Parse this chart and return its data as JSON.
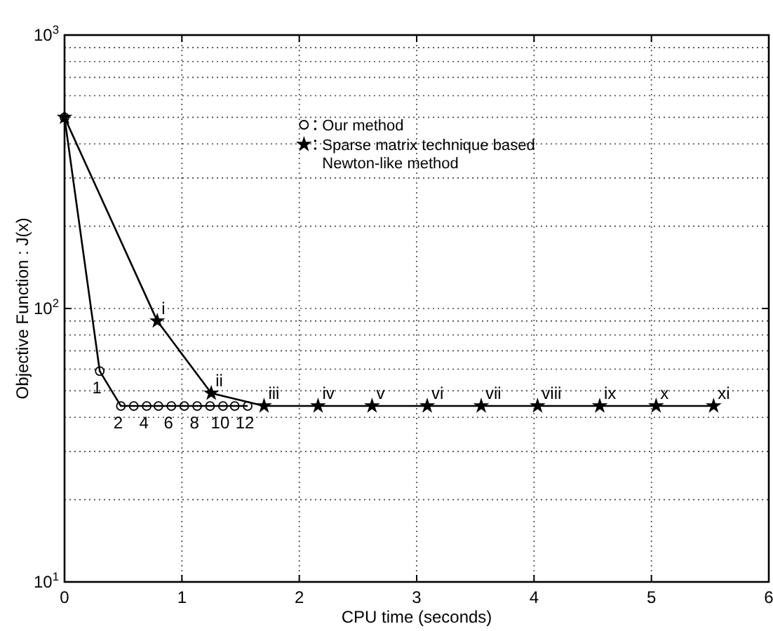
{
  "chart_data": {
    "type": "line",
    "xlabel": "CPU time (seconds)",
    "ylabel": "Objective Function : J(x)",
    "log": "y",
    "xlim": [
      0,
      6
    ],
    "xticks": [
      0,
      1,
      2,
      3,
      4,
      5,
      6
    ],
    "ylim": [
      10,
      1000
    ],
    "yticks": [
      {
        "value": 10,
        "label": "10$^{1}$"
      },
      {
        "value": 100,
        "label": "10$^{2}$"
      },
      {
        "value": 1000,
        "label": "10$^{3}$"
      }
    ],
    "grid": true,
    "legend": "top right",
    "line_style": "solid",
    "series": [
      {
        "name": "Our method",
        "color": "#000000",
        "marker": "circle",
        "x": [
          0,
          0.3,
          0.48,
          0.59,
          0.7,
          0.8,
          0.91,
          1.02,
          1.13,
          1.24,
          1.35,
          1.45,
          1.56
        ],
        "values": [
          500,
          59,
          44,
          44,
          44,
          44,
          44,
          44,
          44,
          44,
          44,
          44,
          44
        ]
      },
      {
        "name": "Sparse matrix technique based Newton-like method",
        "color": "#000000",
        "marker": "star",
        "x": [
          0,
          0.79,
          1.25,
          1.7,
          2.16,
          2.62,
          3.09,
          3.55,
          4.03,
          4.56,
          5.04,
          5.53
        ],
        "values": [
          500,
          90,
          49,
          44,
          44,
          44,
          44,
          44,
          44,
          44,
          44,
          44
        ]
      }
    ],
    "annotations": [
      {
        "text": "1",
        "x": 0.3,
        "y": 59
      },
      {
        "text": "2",
        "x": 0.48,
        "y": 44
      },
      {
        "text": "4",
        "x": 0.7,
        "y": 44
      },
      {
        "text": "6",
        "x": 0.91,
        "y": 44
      },
      {
        "text": "8",
        "x": 1.13,
        "y": 44
      },
      {
        "text": "10",
        "x": 1.35,
        "y": 44
      },
      {
        "text": "12",
        "x": 1.56,
        "y": 44
      },
      {
        "text": "i",
        "x": 0.79,
        "y": 90
      },
      {
        "text": "ii",
        "x": 1.25,
        "y": 49
      },
      {
        "text": "iii",
        "x": 1.7,
        "y": 44
      },
      {
        "text": "iv",
        "x": 2.16,
        "y": 44
      },
      {
        "text": "v",
        "x": 2.62,
        "y": 44
      },
      {
        "text": "vi",
        "x": 3.09,
        "y": 44
      },
      {
        "text": "vii",
        "x": 3.55,
        "y": 44
      },
      {
        "text": "viii",
        "x": 4.03,
        "y": 44
      },
      {
        "text": "ix",
        "x": 4.56,
        "y": 44
      },
      {
        "text": "x",
        "x": 5.04,
        "y": 44
      },
      {
        "text": "xi",
        "x": 5.53,
        "y": 44
      }
    ]
  }
}
